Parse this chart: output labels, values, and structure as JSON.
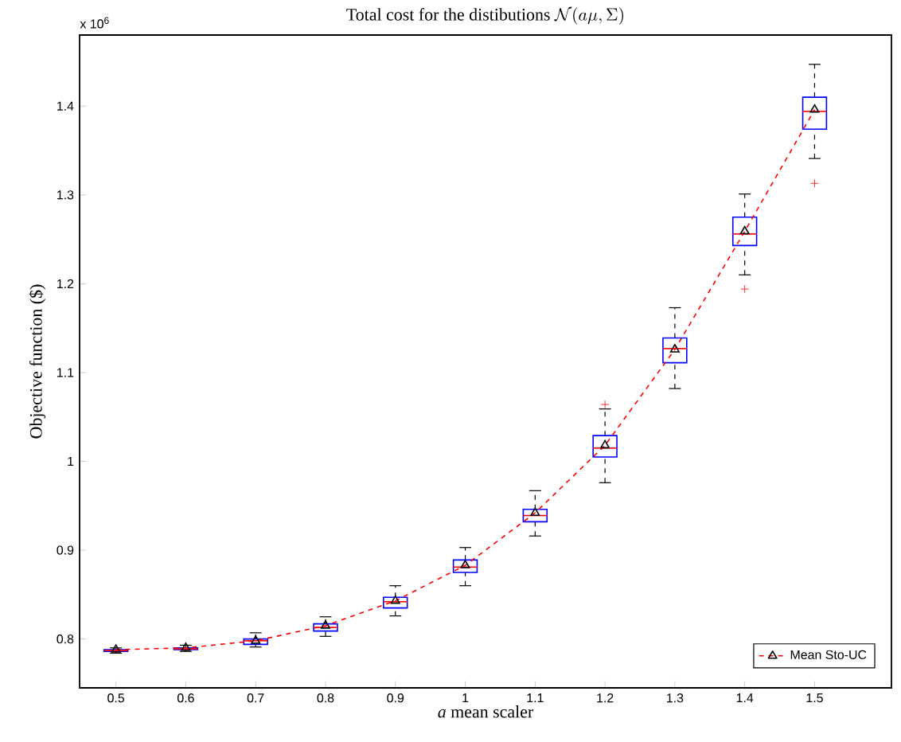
{
  "chart_data": {
    "type": "box",
    "title": "\\textrm{Total cost for the distibutions }\\mathcal{N}(a\\mu,\\Sigma)",
    "xlabel": "*a* mean scaler",
    "ylabel": "Objective function ($)",
    "annotations": [
      "x 10$^{6}$"
    ],
    "categories": [
      "0.5",
      "0.6",
      "0.7",
      "0.8",
      "0.9",
      "1",
      "1.1",
      "1.2",
      "1.3",
      "1.4",
      "1.5"
    ],
    "ylim": [
      0.745,
      1.48
    ],
    "yticks": [
      0.8,
      0.9,
      1,
      1.1,
      1.2,
      1.3,
      1.4
    ],
    "grid": false,
    "legend": "bottom right",
    "series": [
      {
        "type": "box",
        "color": "#0000ff",
        "boxes": [
          {
            "low": 0.784,
            "q1": 0.786,
            "median": 0.787,
            "q3": 0.788,
            "high": 0.79,
            "mean": 0.788
          },
          {
            "low": 0.786,
            "q1": 0.788,
            "median": 0.789,
            "q3": 0.79,
            "high": 0.793,
            "mean": 0.79
          },
          {
            "low": 0.791,
            "q1": 0.794,
            "median": 0.798,
            "q3": 0.8,
            "high": 0.807,
            "mean": 0.798
          },
          {
            "low": 0.803,
            "q1": 0.809,
            "median": 0.813,
            "q3": 0.817,
            "high": 0.825,
            "mean": 0.815
          },
          {
            "low": 0.826,
            "q1": 0.835,
            "median": 0.842,
            "q3": 0.847,
            "high": 0.86,
            "mean": 0.843
          },
          {
            "low": 0.86,
            "q1": 0.875,
            "median": 0.881,
            "q3": 0.889,
            "high": 0.903,
            "mean": 0.883
          },
          {
            "low": 0.916,
            "q1": 0.932,
            "median": 0.939,
            "q3": 0.946,
            "high": 0.967,
            "mean": 0.942
          },
          {
            "low": 0.976,
            "q1": 1.005,
            "median": 1.015,
            "q3": 1.029,
            "high": 1.059,
            "mean": 1.018,
            "outliers": [
              1.064
            ]
          },
          {
            "low": 1.082,
            "q1": 1.111,
            "median": 1.127,
            "q3": 1.139,
            "high": 1.173,
            "mean": 1.126
          },
          {
            "low": 1.21,
            "q1": 1.243,
            "median": 1.256,
            "q3": 1.275,
            "high": 1.301,
            "mean": 1.259,
            "outliers": [
              1.194
            ]
          },
          {
            "low": 1.341,
            "q1": 1.374,
            "median": 1.394,
            "q3": 1.41,
            "high": 1.447,
            "mean": 1.396,
            "outliers": [
              1.313
            ]
          }
        ]
      },
      {
        "type": "line",
        "name": "Mean Sto-UC",
        "color": "#ff0000",
        "line_style": "dashed",
        "values": [
          0.788,
          0.79,
          0.798,
          0.815,
          0.843,
          0.883,
          0.942,
          1.018,
          1.126,
          1.259,
          1.396
        ]
      }
    ]
  }
}
